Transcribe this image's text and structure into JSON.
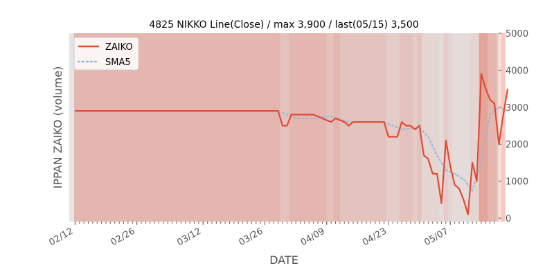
{
  "chart_data": {
    "type": "line",
    "title": "4825 NIKKO Line(Close) / max 3,900 / last(05/15) 3,500",
    "xlabel": "DATE",
    "ylabel": "IPPAN ZAIKO (volume)",
    "ylim": [
      0,
      5000
    ],
    "y_ticks": [
      0,
      1000,
      2000,
      3000,
      4000,
      5000
    ],
    "y_tick_labels": [
      "0",
      "1000",
      "2000",
      "3000",
      "4000",
      "5000"
    ],
    "y_axis_side": "right",
    "x_range": [
      "2024-02-11",
      "2024-05-17"
    ],
    "x_ticks": [
      {
        "date": "2024-02-12",
        "label": "02/12"
      },
      {
        "date": "2024-02-26",
        "label": "02/26"
      },
      {
        "date": "2024-03-12",
        "label": "03/12"
      },
      {
        "date": "2024-03-26",
        "label": "03/26"
      },
      {
        "date": "2024-04-09",
        "label": "04/09"
      },
      {
        "date": "2024-04-23",
        "label": "04/23"
      },
      {
        "date": "2024-05-07",
        "label": "05/07"
      }
    ],
    "legend_position": "top-left",
    "grid": false,
    "colors": {
      "zaiko": "#e24a33",
      "sma": "#9ab8d6",
      "background": "#e5e5e5",
      "shade": "#e24a33",
      "axis_text": "#555555"
    },
    "series": [
      {
        "name": "ZAIKO",
        "style": "solid",
        "points": [
          [
            "2024-02-12",
            2900
          ],
          [
            "2024-02-15",
            2900
          ],
          [
            "2024-02-20",
            2900
          ],
          [
            "2024-02-25",
            2900
          ],
          [
            "2024-03-01",
            2900
          ],
          [
            "2024-03-06",
            2900
          ],
          [
            "2024-03-11",
            2900
          ],
          [
            "2024-03-16",
            2900
          ],
          [
            "2024-03-21",
            2900
          ],
          [
            "2024-03-26",
            2900
          ],
          [
            "2024-03-29",
            2900
          ],
          [
            "2024-03-30",
            2500
          ],
          [
            "2024-03-31",
            2500
          ],
          [
            "2024-04-01",
            2800
          ],
          [
            "2024-04-03",
            2800
          ],
          [
            "2024-04-06",
            2800
          ],
          [
            "2024-04-08",
            2700
          ],
          [
            "2024-04-10",
            2600
          ],
          [
            "2024-04-11",
            2700
          ],
          [
            "2024-04-13",
            2600
          ],
          [
            "2024-04-14",
            2500
          ],
          [
            "2024-04-15",
            2600
          ],
          [
            "2024-04-17",
            2600
          ],
          [
            "2024-04-21",
            2600
          ],
          [
            "2024-04-22",
            2600
          ],
          [
            "2024-04-23",
            2200
          ],
          [
            "2024-04-24",
            2200
          ],
          [
            "2024-04-25",
            2200
          ],
          [
            "2024-04-26",
            2600
          ],
          [
            "2024-04-27",
            2500
          ],
          [
            "2024-04-28",
            2500
          ],
          [
            "2024-04-29",
            2400
          ],
          [
            "2024-04-30",
            2500
          ],
          [
            "2024-05-01",
            1700
          ],
          [
            "2024-05-02",
            1600
          ],
          [
            "2024-05-03",
            1200
          ],
          [
            "2024-05-04",
            1200
          ],
          [
            "2024-05-05",
            400
          ],
          [
            "2024-05-06",
            2100
          ],
          [
            "2024-05-07",
            1400
          ],
          [
            "2024-05-08",
            900
          ],
          [
            "2024-05-09",
            800
          ],
          [
            "2024-05-10",
            500
          ],
          [
            "2024-05-11",
            100
          ],
          [
            "2024-05-12",
            1500
          ],
          [
            "2024-05-13",
            1000
          ],
          [
            "2024-05-14",
            3900
          ],
          [
            "2024-05-15",
            3500
          ],
          [
            "2024-05-16",
            3200
          ],
          [
            "2024-05-17",
            3100
          ],
          [
            "2024-05-18",
            2000
          ],
          [
            "2024-05-19",
            2800
          ],
          [
            "2024-05-20",
            3500
          ]
        ]
      },
      {
        "name": "SMA5",
        "style": "dotted",
        "points": [
          [
            "2024-02-12",
            2900
          ],
          [
            "2024-03-29",
            2900
          ],
          [
            "2024-04-02",
            2700
          ],
          [
            "2024-04-06",
            2700
          ],
          [
            "2024-04-10",
            2750
          ],
          [
            "2024-04-14",
            2600
          ],
          [
            "2024-04-18",
            2600
          ],
          [
            "2024-04-22",
            2600
          ],
          [
            "2024-04-26",
            2400
          ],
          [
            "2024-04-30",
            2450
          ],
          [
            "2024-05-02",
            2200
          ],
          [
            "2024-05-04",
            1700
          ],
          [
            "2024-05-06",
            1300
          ],
          [
            "2024-05-08",
            1200
          ],
          [
            "2024-05-10",
            1050
          ],
          [
            "2024-05-12",
            750
          ],
          [
            "2024-05-14",
            1500
          ],
          [
            "2024-05-16",
            2800
          ],
          [
            "2024-05-18",
            3000
          ],
          [
            "2024-05-20",
            2900
          ]
        ]
      }
    ]
  }
}
